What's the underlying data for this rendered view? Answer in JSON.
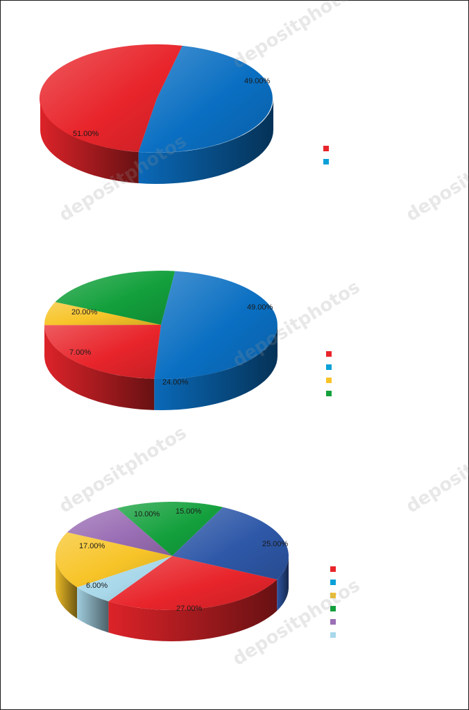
{
  "chart_data": [
    {
      "type": "pie",
      "title": "",
      "slices": [
        {
          "label": "49.00%",
          "value": 49,
          "color": "#0a6fc2"
        },
        {
          "label": "51.00%",
          "value": 51,
          "color": "#e8252b"
        }
      ],
      "legend": {
        "placement": "right",
        "colors": [
          "#e8252b",
          "#0aa0d8"
        ]
      }
    },
    {
      "type": "pie",
      "title": "",
      "slices": [
        {
          "label": "49.00%",
          "value": 49,
          "color": "#0a6fc2"
        },
        {
          "label": "24.00%",
          "value": 24,
          "color": "#e8252b"
        },
        {
          "label": "7.00%",
          "value": 7,
          "color": "#f7c428"
        },
        {
          "label": "20.00%",
          "value": 20,
          "color": "#13a03c"
        }
      ],
      "legend": {
        "placement": "right",
        "colors": [
          "#e8252b",
          "#0aa0d8",
          "#f7c428",
          "#13a03c"
        ]
      }
    },
    {
      "type": "pie",
      "title": "",
      "slices": [
        {
          "label": "25.00%",
          "value": 25,
          "color": "#2e58a8"
        },
        {
          "label": "27.00%",
          "value": 27,
          "color": "#e8252b"
        },
        {
          "label": "6.00%",
          "value": 6,
          "color": "#a8d8ea"
        },
        {
          "label": "17.00%",
          "value": 17,
          "color": "#f7c428"
        },
        {
          "label": "10.00%",
          "value": 10,
          "color": "#9b6fb5"
        },
        {
          "label": "15.00%",
          "value": 15,
          "color": "#13a03c"
        }
      ],
      "legend": {
        "placement": "right",
        "colors": [
          "#e8252b",
          "#0aa0d8",
          "#f7c428",
          "#13a03c",
          "#9b6fb5",
          "#a8d8ea"
        ]
      }
    }
  ],
  "watermark": {
    "text": "depositphotos"
  }
}
